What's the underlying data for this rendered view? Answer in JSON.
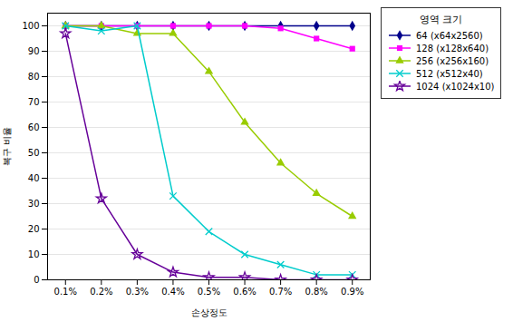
{
  "chart_data": {
    "type": "line",
    "xlabel": "손상정도",
    "ylabel": "복구 비율",
    "legend_title": "영역 크기",
    "x": [
      0.1,
      0.2,
      0.3,
      0.4,
      0.5,
      0.6,
      0.7,
      0.8,
      0.9
    ],
    "xlim": [
      0.05,
      0.95
    ],
    "xticks": [
      {
        "value": 0.1,
        "label": "0.1%"
      },
      {
        "value": 0.2,
        "label": "0.2%"
      },
      {
        "value": 0.3,
        "label": "0.3%"
      },
      {
        "value": 0.4,
        "label": "0.4%"
      },
      {
        "value": 0.5,
        "label": "0.5%"
      },
      {
        "value": 0.6,
        "label": "0.6%"
      },
      {
        "value": 0.7,
        "label": "0.7%"
      },
      {
        "value": 0.8,
        "label": "0.8%"
      },
      {
        "value": 0.9,
        "label": "0.9%"
      }
    ],
    "ylim": [
      0,
      105
    ],
    "yticks": [
      0,
      10,
      20,
      30,
      40,
      50,
      60,
      70,
      80,
      90,
      100
    ],
    "grid": true,
    "legend": "right",
    "series": [
      {
        "name": "64 (x64x2560)",
        "color": "#00008B",
        "marker": "diamond",
        "values": [
          100,
          100,
          100,
          100,
          100,
          100,
          100,
          100,
          100
        ]
      },
      {
        "name": "128 (x128x640)",
        "color": "#FF00FF",
        "marker": "square",
        "values": [
          100,
          100,
          100,
          100,
          100,
          100,
          99,
          95,
          91
        ]
      },
      {
        "name": "256 (x256x160)",
        "color": "#99CC00",
        "marker": "triangle",
        "values": [
          100,
          100,
          97,
          97,
          82,
          62,
          46,
          34,
          25
        ]
      },
      {
        "name": "512 (x512x40)",
        "color": "#00CCCC",
        "marker": "x",
        "values": [
          100,
          98,
          100,
          33,
          19,
          10,
          6,
          2,
          2
        ]
      },
      {
        "name": "1024 (x1024x10)",
        "color": "#660099",
        "marker": "star",
        "values": [
          97,
          32,
          10,
          3,
          1,
          1,
          0,
          0,
          0
        ]
      }
    ]
  }
}
